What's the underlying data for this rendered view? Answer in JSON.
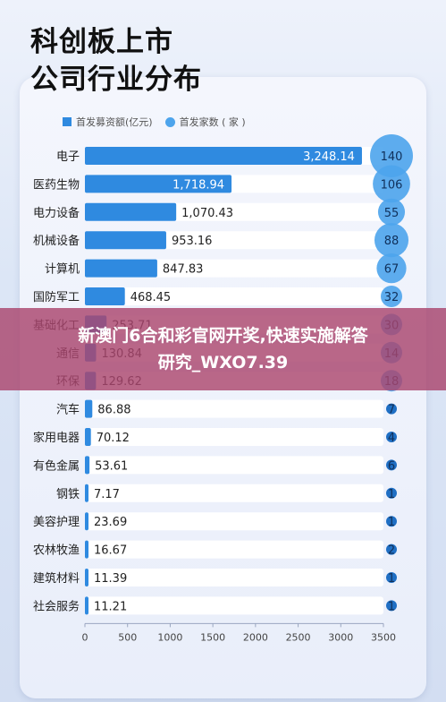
{
  "title_line1": "科创板上市",
  "title_line2": "公司行业分布",
  "legend": {
    "bar_label": "首发募资额(亿元)",
    "dot_label": "首发家数 ( 家 )"
  },
  "banner": {
    "line1": "新澳门6合和彩官网开奖,快速实施解答",
    "line2": "研究_WXO7.39"
  },
  "colors": {
    "bar": "#2f8ae0",
    "track": "#ffffff",
    "bubble": "#4da4ec",
    "bubble_small": "#1f6fc4"
  },
  "chart_data": {
    "type": "bar",
    "orientation": "horizontal",
    "categories": [
      "电子",
      "医药生物",
      "电力设备",
      "机械设备",
      "计算机",
      "国防军工",
      "基础化工",
      "通信",
      "环保",
      "汽车",
      "家用电器",
      "有色金属",
      "钢铁",
      "美容护理",
      "农林牧渔",
      "建筑材料",
      "社会服务"
    ],
    "series": [
      {
        "name": "首发募资额(亿元)",
        "values": [
          3248.14,
          1718.94,
          1070.43,
          953.16,
          847.83,
          468.45,
          253.71,
          130.84,
          129.62,
          86.88,
          70.12,
          53.61,
          7.17,
          23.69,
          16.67,
          11.39,
          11.21
        ],
        "labels": [
          "3,248.14",
          "1,718.94",
          "1,070.43",
          "953.16",
          "847.83",
          "468.45",
          "253.71",
          "130.84",
          "129.62",
          "86.88",
          "70.12",
          "53.61",
          "7.17",
          "23.69",
          "16.67",
          "11.39",
          "11.21"
        ]
      },
      {
        "name": "首发家数 ( 家 )",
        "values": [
          140,
          106,
          55,
          88,
          67,
          32,
          30,
          14,
          18,
          7,
          4,
          6,
          1,
          1,
          2,
          1,
          1
        ]
      }
    ],
    "xlim": [
      0,
      3500
    ],
    "xticks": [
      0,
      500,
      1000,
      1500,
      2000,
      2500,
      3000,
      3500
    ],
    "legend_position": "top-left",
    "grid": false
  }
}
